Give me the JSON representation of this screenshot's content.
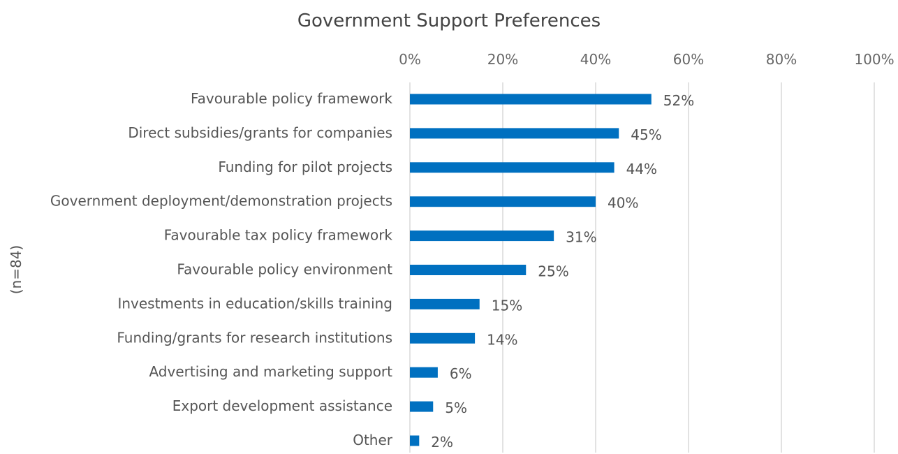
{
  "chart_data": {
    "type": "bar",
    "orientation": "horizontal",
    "title": "Government Support Preferences",
    "ylabel": "(n=84)",
    "xlabel": "",
    "xlim": [
      0,
      100
    ],
    "x_ticks": [
      "0%",
      "20%",
      "40%",
      "60%",
      "80%",
      "100%"
    ],
    "x_tick_values": [
      0,
      20,
      40,
      60,
      80,
      100
    ],
    "x_axis_position": "top",
    "grid": true,
    "legend": "none",
    "bar_color": "#0070C0",
    "grid_color": "#D9D9D9",
    "categories": [
      "Favourable policy framework",
      "Direct subsidies/grants for companies",
      "Funding for pilot projects",
      "Government deployment/demonstration projects",
      "Favourable tax policy framework",
      "Favourable policy environment",
      "Investments in education/skills training",
      "Funding/grants for research institutions",
      "Advertising and marketing support",
      "Export development assistance",
      "Other"
    ],
    "values": [
      52,
      45,
      44,
      40,
      31,
      25,
      15,
      14,
      6,
      5,
      2
    ],
    "data_labels": [
      "52%",
      "45%",
      "44%",
      "40%",
      "31%",
      "25%",
      "15%",
      "14%",
      "6%",
      "5%",
      "2%"
    ]
  }
}
